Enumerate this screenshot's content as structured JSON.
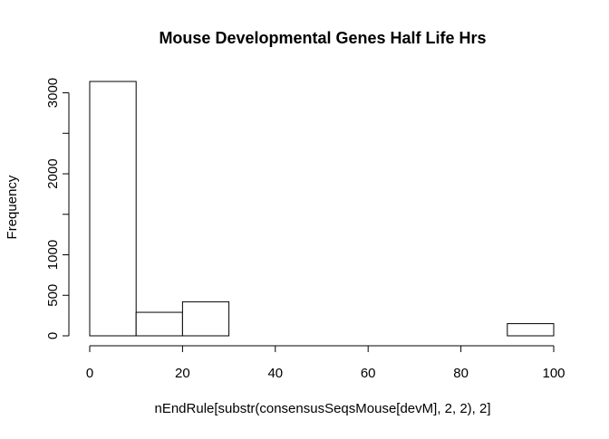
{
  "chart_data": {
    "type": "bar",
    "title": "Mouse Developmental Genes Half Life Hrs",
    "xlabel": "nEndRule[substr(consensusSeqsMouse[devM], 2, 2), 2]",
    "ylabel": "Frequency",
    "bins": [
      {
        "x0": 0,
        "x1": 10,
        "count": 3140
      },
      {
        "x0": 10,
        "x1": 20,
        "count": 290
      },
      {
        "x0": 20,
        "x1": 30,
        "count": 420
      },
      {
        "x0": 30,
        "x1": 40,
        "count": 0
      },
      {
        "x0": 40,
        "x1": 50,
        "count": 0
      },
      {
        "x0": 50,
        "x1": 60,
        "count": 0
      },
      {
        "x0": 60,
        "x1": 70,
        "count": 0
      },
      {
        "x0": 70,
        "x1": 80,
        "count": 0
      },
      {
        "x0": 80,
        "x1": 90,
        "count": 0
      },
      {
        "x0": 90,
        "x1": 100,
        "count": 150
      }
    ],
    "xlim": [
      0,
      100
    ],
    "ylim": [
      0,
      3140
    ],
    "x_ticks": [
      0,
      20,
      40,
      60,
      80,
      100
    ],
    "y_ticks": [
      0,
      500,
      1000,
      1500,
      2000,
      2500,
      3000
    ],
    "y_tick_labels": [
      "0",
      "500",
      "1000",
      "",
      "2000",
      "",
      "3000"
    ],
    "grid": false,
    "bar_fill": "#ffffff",
    "bar_stroke": "#000000"
  }
}
